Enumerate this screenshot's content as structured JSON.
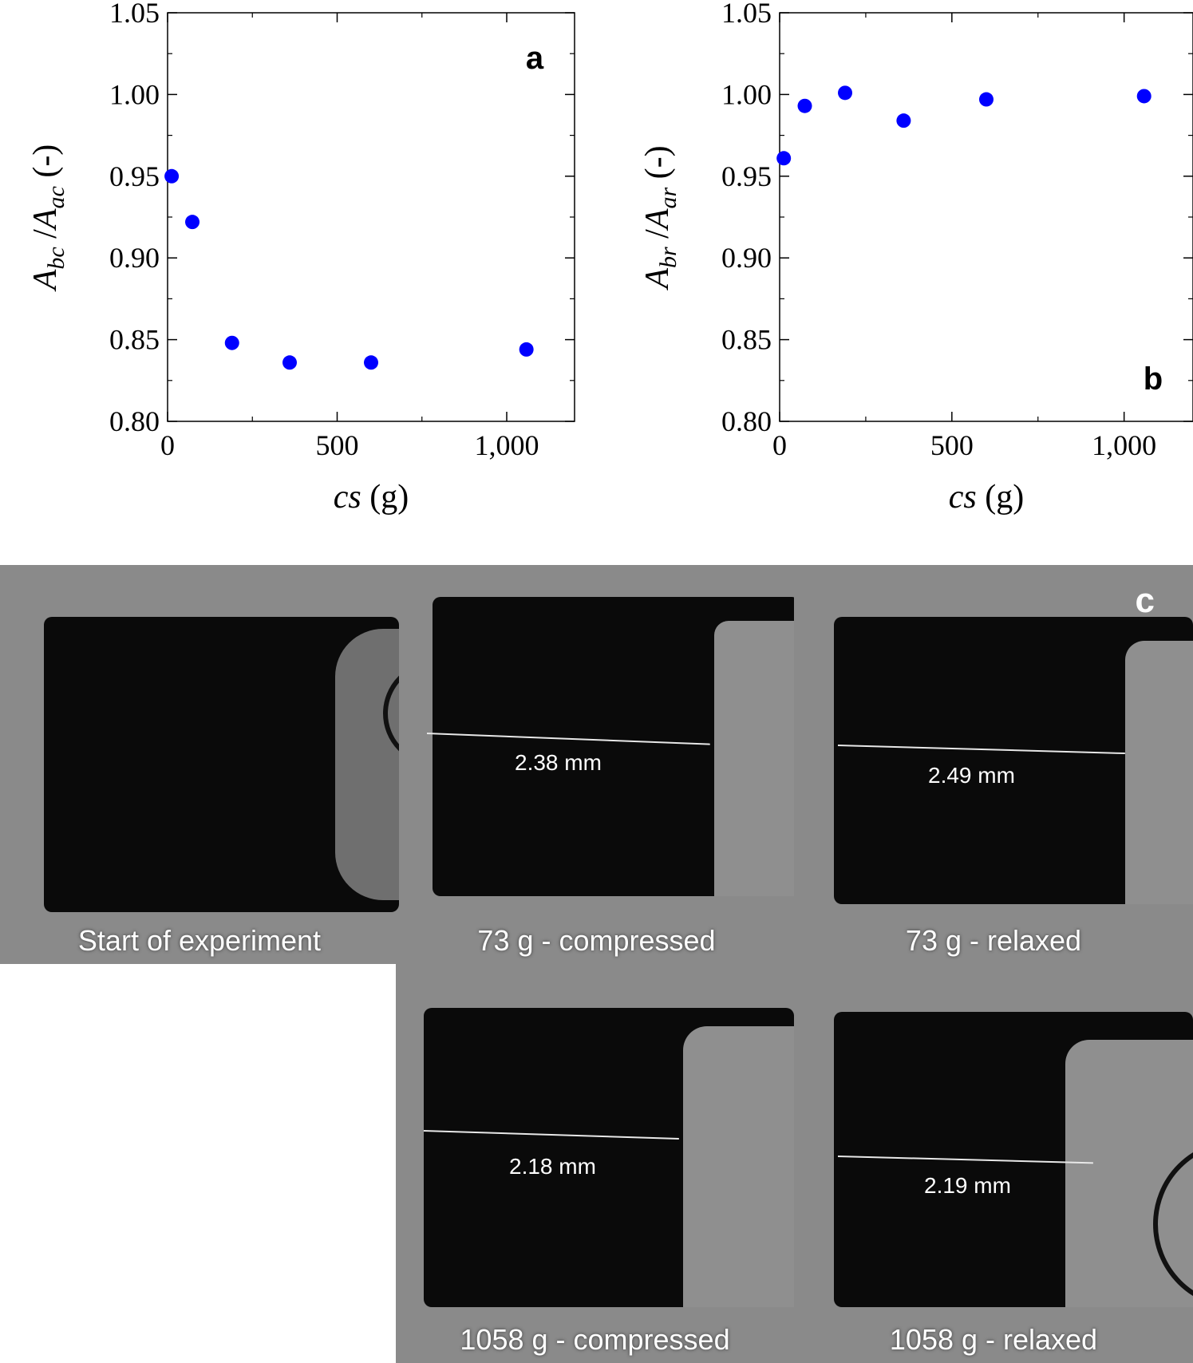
{
  "chart_data": [
    {
      "type": "scatter",
      "panel": "a",
      "xlabel_italic": "cs",
      "xlabel_unit": "(g)",
      "ylabel": "A_bc / A_ac (-)",
      "ylabel_num": "A",
      "ylabel_num_sub": "bc",
      "ylabel_den": "A",
      "ylabel_den_sub": "ac",
      "ylabel_unit": "(-)",
      "xlim": [
        0,
        1200
      ],
      "ylim": [
        0.8,
        1.05
      ],
      "xticks": [
        0,
        500,
        1000
      ],
      "xtick_labels": [
        "0",
        "500",
        "1,000"
      ],
      "yticks": [
        0.8,
        0.85,
        0.9,
        0.95,
        1.0,
        1.05
      ],
      "ytick_labels": [
        "0.80",
        "0.85",
        "0.90",
        "0.95",
        "1.00",
        "1.05"
      ],
      "series": [
        {
          "x": [
            12,
            73,
            190,
            360,
            600,
            1058
          ],
          "y": [
            0.95,
            0.922,
            0.848,
            0.836,
            0.836,
            0.844
          ]
        }
      ],
      "marker_color": "#0000ff",
      "grid": false,
      "letter_position": "top-right"
    },
    {
      "type": "scatter",
      "panel": "b",
      "xlabel_italic": "cs",
      "xlabel_unit": "(g)",
      "ylabel": "A_br / A_ar (-)",
      "ylabel_num": "A",
      "ylabel_num_sub": "br",
      "ylabel_den": "A",
      "ylabel_den_sub": "ar",
      "ylabel_unit": "(-)",
      "xlim": [
        0,
        1200
      ],
      "ylim": [
        0.8,
        1.05
      ],
      "xticks": [
        0,
        500,
        1000
      ],
      "xtick_labels": [
        "0",
        "500",
        "1,000"
      ],
      "yticks": [
        0.8,
        0.85,
        0.9,
        0.95,
        1.0,
        1.05
      ],
      "ytick_labels": [
        "0.80",
        "0.85",
        "0.90",
        "0.95",
        "1.00",
        "1.05"
      ],
      "series": [
        {
          "x": [
            12,
            73,
            190,
            360,
            600,
            1058
          ],
          "y": [
            0.961,
            0.993,
            1.001,
            0.984,
            0.997,
            0.999
          ]
        }
      ],
      "marker_color": "#0000ff",
      "grid": false,
      "letter_position": "bottom-right"
    }
  ],
  "photos": {
    "letter": "c",
    "items": [
      {
        "caption": "Start of experiment",
        "measurement": ""
      },
      {
        "caption": "73 g - compressed",
        "measurement": "2.38 mm"
      },
      {
        "caption": "73 g - relaxed",
        "measurement": "2.49 mm"
      },
      {
        "caption": "1058 g - compressed",
        "measurement": "2.18 mm"
      },
      {
        "caption": "1058 g - relaxed",
        "measurement": "2.19 mm"
      }
    ]
  }
}
